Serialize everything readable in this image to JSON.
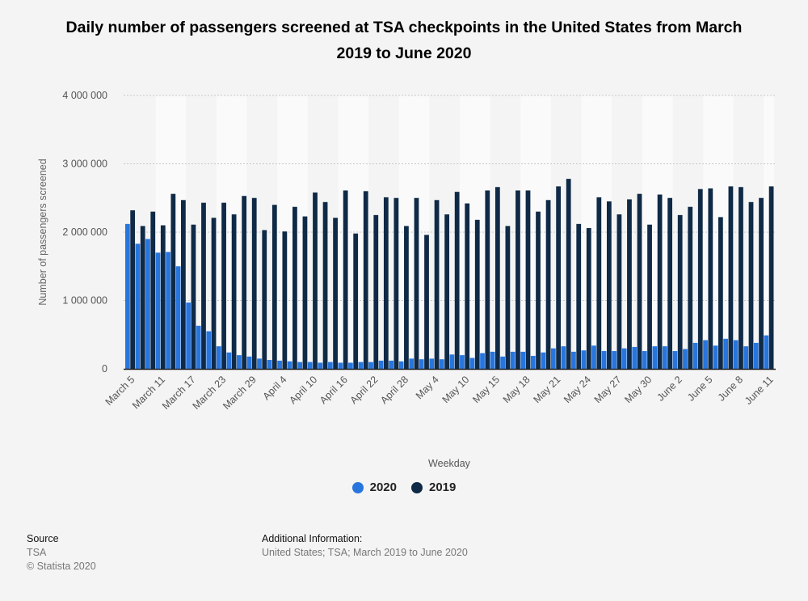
{
  "chart_data": {
    "type": "bar",
    "title": "Daily number of passengers screened at TSA checkpoints in the United States from March 2019 to June 2020",
    "xlabel": "Weekday",
    "ylabel": "Number of passengers screened",
    "ylim": [
      0,
      4000000
    ],
    "yticks": [
      0,
      1000000,
      2000000,
      3000000,
      4000000
    ],
    "ytick_labels": [
      "0",
      "1 000 000",
      "2 000 000",
      "3 000 000",
      "4 000 000"
    ],
    "grid": true,
    "legend_position": "bottom",
    "x_tick_labels": [
      "March 5",
      "March 11",
      "March 17",
      "March 23",
      "March 29",
      "April 4",
      "April 10",
      "April 16",
      "April 22",
      "April 28",
      "May 4",
      "May 10",
      "May 15",
      "May 18",
      "May 21",
      "May 24",
      "May 27",
      "May 30",
      "June 2",
      "June 5",
      "June 8",
      "June 11"
    ],
    "x_tick_every": 3,
    "series": [
      {
        "name": "2020",
        "color": "#2876dd",
        "values": [
          2120000,
          1830000,
          1900000,
          1700000,
          1710000,
          1500000,
          970000,
          630000,
          550000,
          330000,
          240000,
          200000,
          180000,
          150000,
          130000,
          120000,
          110000,
          100000,
          100000,
          90000,
          100000,
          90000,
          90000,
          100000,
          100000,
          120000,
          120000,
          110000,
          150000,
          140000,
          150000,
          140000,
          210000,
          200000,
          160000,
          230000,
          250000,
          180000,
          250000,
          250000,
          190000,
          240000,
          300000,
          330000,
          250000,
          270000,
          340000,
          260000,
          260000,
          300000,
          320000,
          260000,
          330000,
          330000,
          260000,
          290000,
          380000,
          420000,
          340000,
          440000,
          420000,
          330000,
          380000,
          490000
        ]
      },
      {
        "name": "2019",
        "color": "#0f2a46",
        "values": [
          2320000,
          2090000,
          2300000,
          2100000,
          2560000,
          2470000,
          2110000,
          2430000,
          2210000,
          2430000,
          2260000,
          2530000,
          2500000,
          2030000,
          2400000,
          2010000,
          2370000,
          2230000,
          2580000,
          2440000,
          2210000,
          2610000,
          1980000,
          2600000,
          2250000,
          2510000,
          2500000,
          2090000,
          2500000,
          1960000,
          2470000,
          2260000,
          2590000,
          2420000,
          2180000,
          2610000,
          2660000,
          2090000,
          2610000,
          2610000,
          2300000,
          2470000,
          2670000,
          2780000,
          2120000,
          2060000,
          2510000,
          2450000,
          2260000,
          2480000,
          2560000,
          2110000,
          2550000,
          2500000,
          2250000,
          2370000,
          2630000,
          2640000,
          2220000,
          2670000,
          2660000,
          2440000,
          2500000,
          2670000
        ]
      }
    ]
  },
  "legend": [
    {
      "label": "2020",
      "color": "#2876dd"
    },
    {
      "label": "2019",
      "color": "#0f2a46"
    }
  ],
  "footer": {
    "source_heading": "Source",
    "source_name": "TSA",
    "copyright": "© Statista 2020",
    "additional_heading": "Additional Information:",
    "additional_text": "United States; TSA; March 2019 to June 2020"
  }
}
